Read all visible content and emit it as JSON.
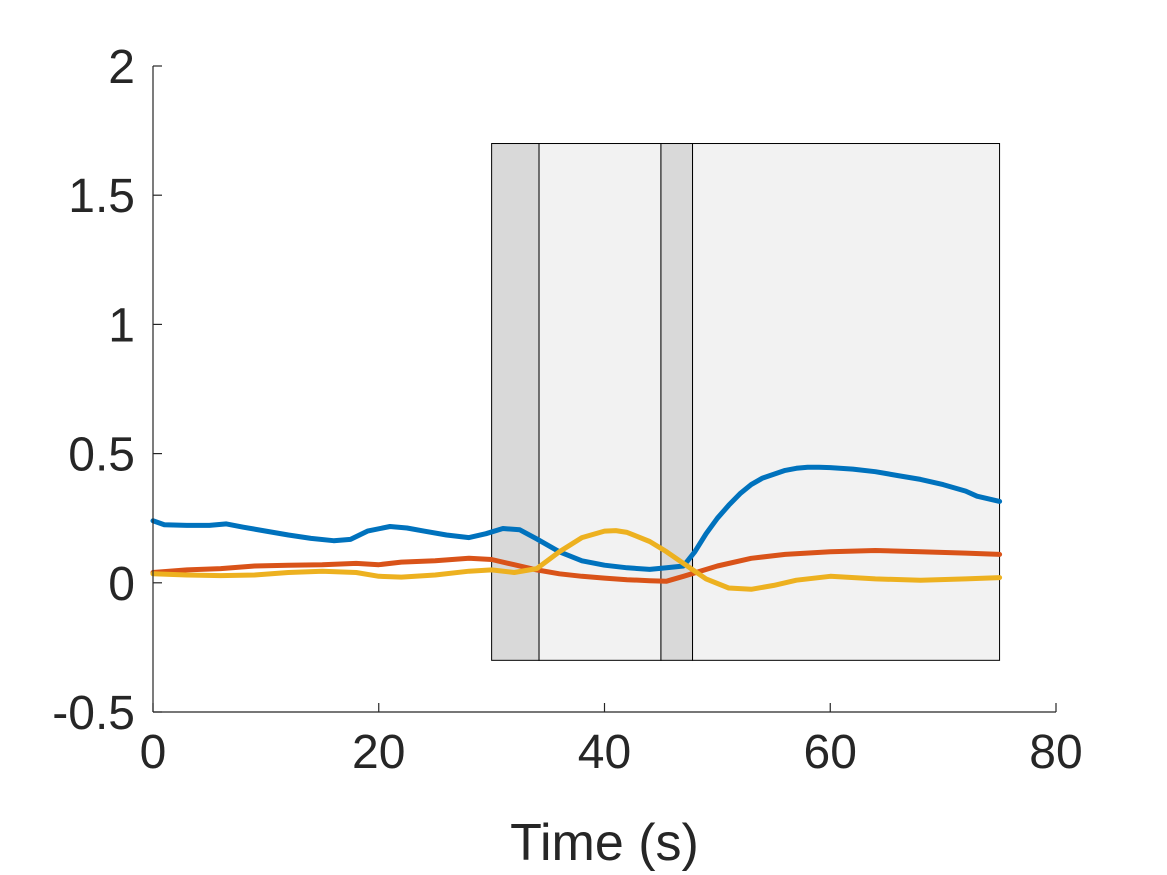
{
  "chart_data": {
    "type": "line",
    "xlabel": "Time (s)",
    "ylabel": "",
    "xlim": [
      0,
      80
    ],
    "ylim": [
      -0.5,
      2
    ],
    "xticks": [
      0,
      20,
      40,
      60,
      80
    ],
    "xtick_labels": [
      "0",
      "20",
      "40",
      "60",
      "80"
    ],
    "yticks": [
      -0.5,
      0,
      0.5,
      1,
      1.5,
      2
    ],
    "ytick_labels": [
      "-0.5",
      "0",
      "0.5",
      "1",
      "1.5",
      "2"
    ],
    "grid": false,
    "shaded_regions": [
      {
        "x0": 30,
        "x1": 34.2,
        "y0": -0.3,
        "y1": 1.7,
        "color": "#d9d9d9"
      },
      {
        "x0": 34.2,
        "x1": 45,
        "y0": -0.3,
        "y1": 1.7,
        "color": "#f2f2f2"
      },
      {
        "x0": 45,
        "x1": 47.8,
        "y0": -0.3,
        "y1": 1.7,
        "color": "#d9d9d9"
      },
      {
        "x0": 47.8,
        "x1": 75,
        "y0": -0.3,
        "y1": 1.7,
        "color": "#f2f2f2"
      }
    ],
    "series": [
      {
        "color": "#0072BD",
        "x": [
          0,
          1,
          3,
          5,
          6.5,
          8,
          10,
          12,
          14,
          16,
          17.5,
          19,
          21,
          22.5,
          24,
          26,
          28,
          29.5,
          31,
          32.5,
          34,
          36,
          38,
          40,
          42,
          44,
          45.5,
          47,
          48,
          49,
          50,
          51,
          52,
          53,
          54,
          55,
          56,
          57,
          58,
          59,
          60,
          62,
          64,
          66,
          68,
          70,
          72,
          73,
          75
        ],
        "y": [
          0.24,
          0.225,
          0.222,
          0.222,
          0.228,
          0.215,
          0.2,
          0.185,
          0.172,
          0.163,
          0.168,
          0.2,
          0.218,
          0.212,
          0.2,
          0.185,
          0.175,
          0.19,
          0.21,
          0.205,
          0.17,
          0.12,
          0.085,
          0.068,
          0.058,
          0.052,
          0.058,
          0.065,
          0.12,
          0.19,
          0.25,
          0.3,
          0.345,
          0.38,
          0.405,
          0.42,
          0.435,
          0.443,
          0.447,
          0.447,
          0.446,
          0.44,
          0.43,
          0.415,
          0.4,
          0.38,
          0.355,
          0.335,
          0.315
        ]
      },
      {
        "color": "#D95319",
        "x": [
          0,
          3,
          6,
          9,
          12,
          15,
          18,
          20,
          22,
          25,
          28,
          30,
          32,
          34,
          36,
          38,
          40,
          42,
          44,
          45.5,
          47,
          50,
          53,
          56,
          60,
          64,
          68,
          72,
          75
        ],
        "y": [
          0.04,
          0.05,
          0.055,
          0.065,
          0.068,
          0.07,
          0.075,
          0.07,
          0.08,
          0.085,
          0.095,
          0.09,
          0.07,
          0.05,
          0.035,
          0.025,
          0.018,
          0.012,
          0.008,
          0.006,
          0.025,
          0.065,
          0.095,
          0.11,
          0.12,
          0.125,
          0.12,
          0.115,
          0.11
        ]
      },
      {
        "color": "#EDB120",
        "x": [
          0,
          3,
          6,
          9,
          12,
          15,
          18,
          20,
          22,
          25,
          28,
          30,
          32,
          34,
          36,
          38,
          40,
          41,
          42,
          44,
          45.5,
          47,
          49,
          51,
          53,
          55,
          57,
          60,
          64,
          68,
          72,
          75
        ],
        "y": [
          0.035,
          0.03,
          0.028,
          0.03,
          0.04,
          0.045,
          0.04,
          0.025,
          0.022,
          0.03,
          0.045,
          0.05,
          0.04,
          0.055,
          0.12,
          0.175,
          0.2,
          0.202,
          0.195,
          0.16,
          0.12,
          0.075,
          0.015,
          -0.02,
          -0.025,
          -0.01,
          0.01,
          0.025,
          0.015,
          0.01,
          0.015,
          0.02
        ]
      }
    ]
  }
}
